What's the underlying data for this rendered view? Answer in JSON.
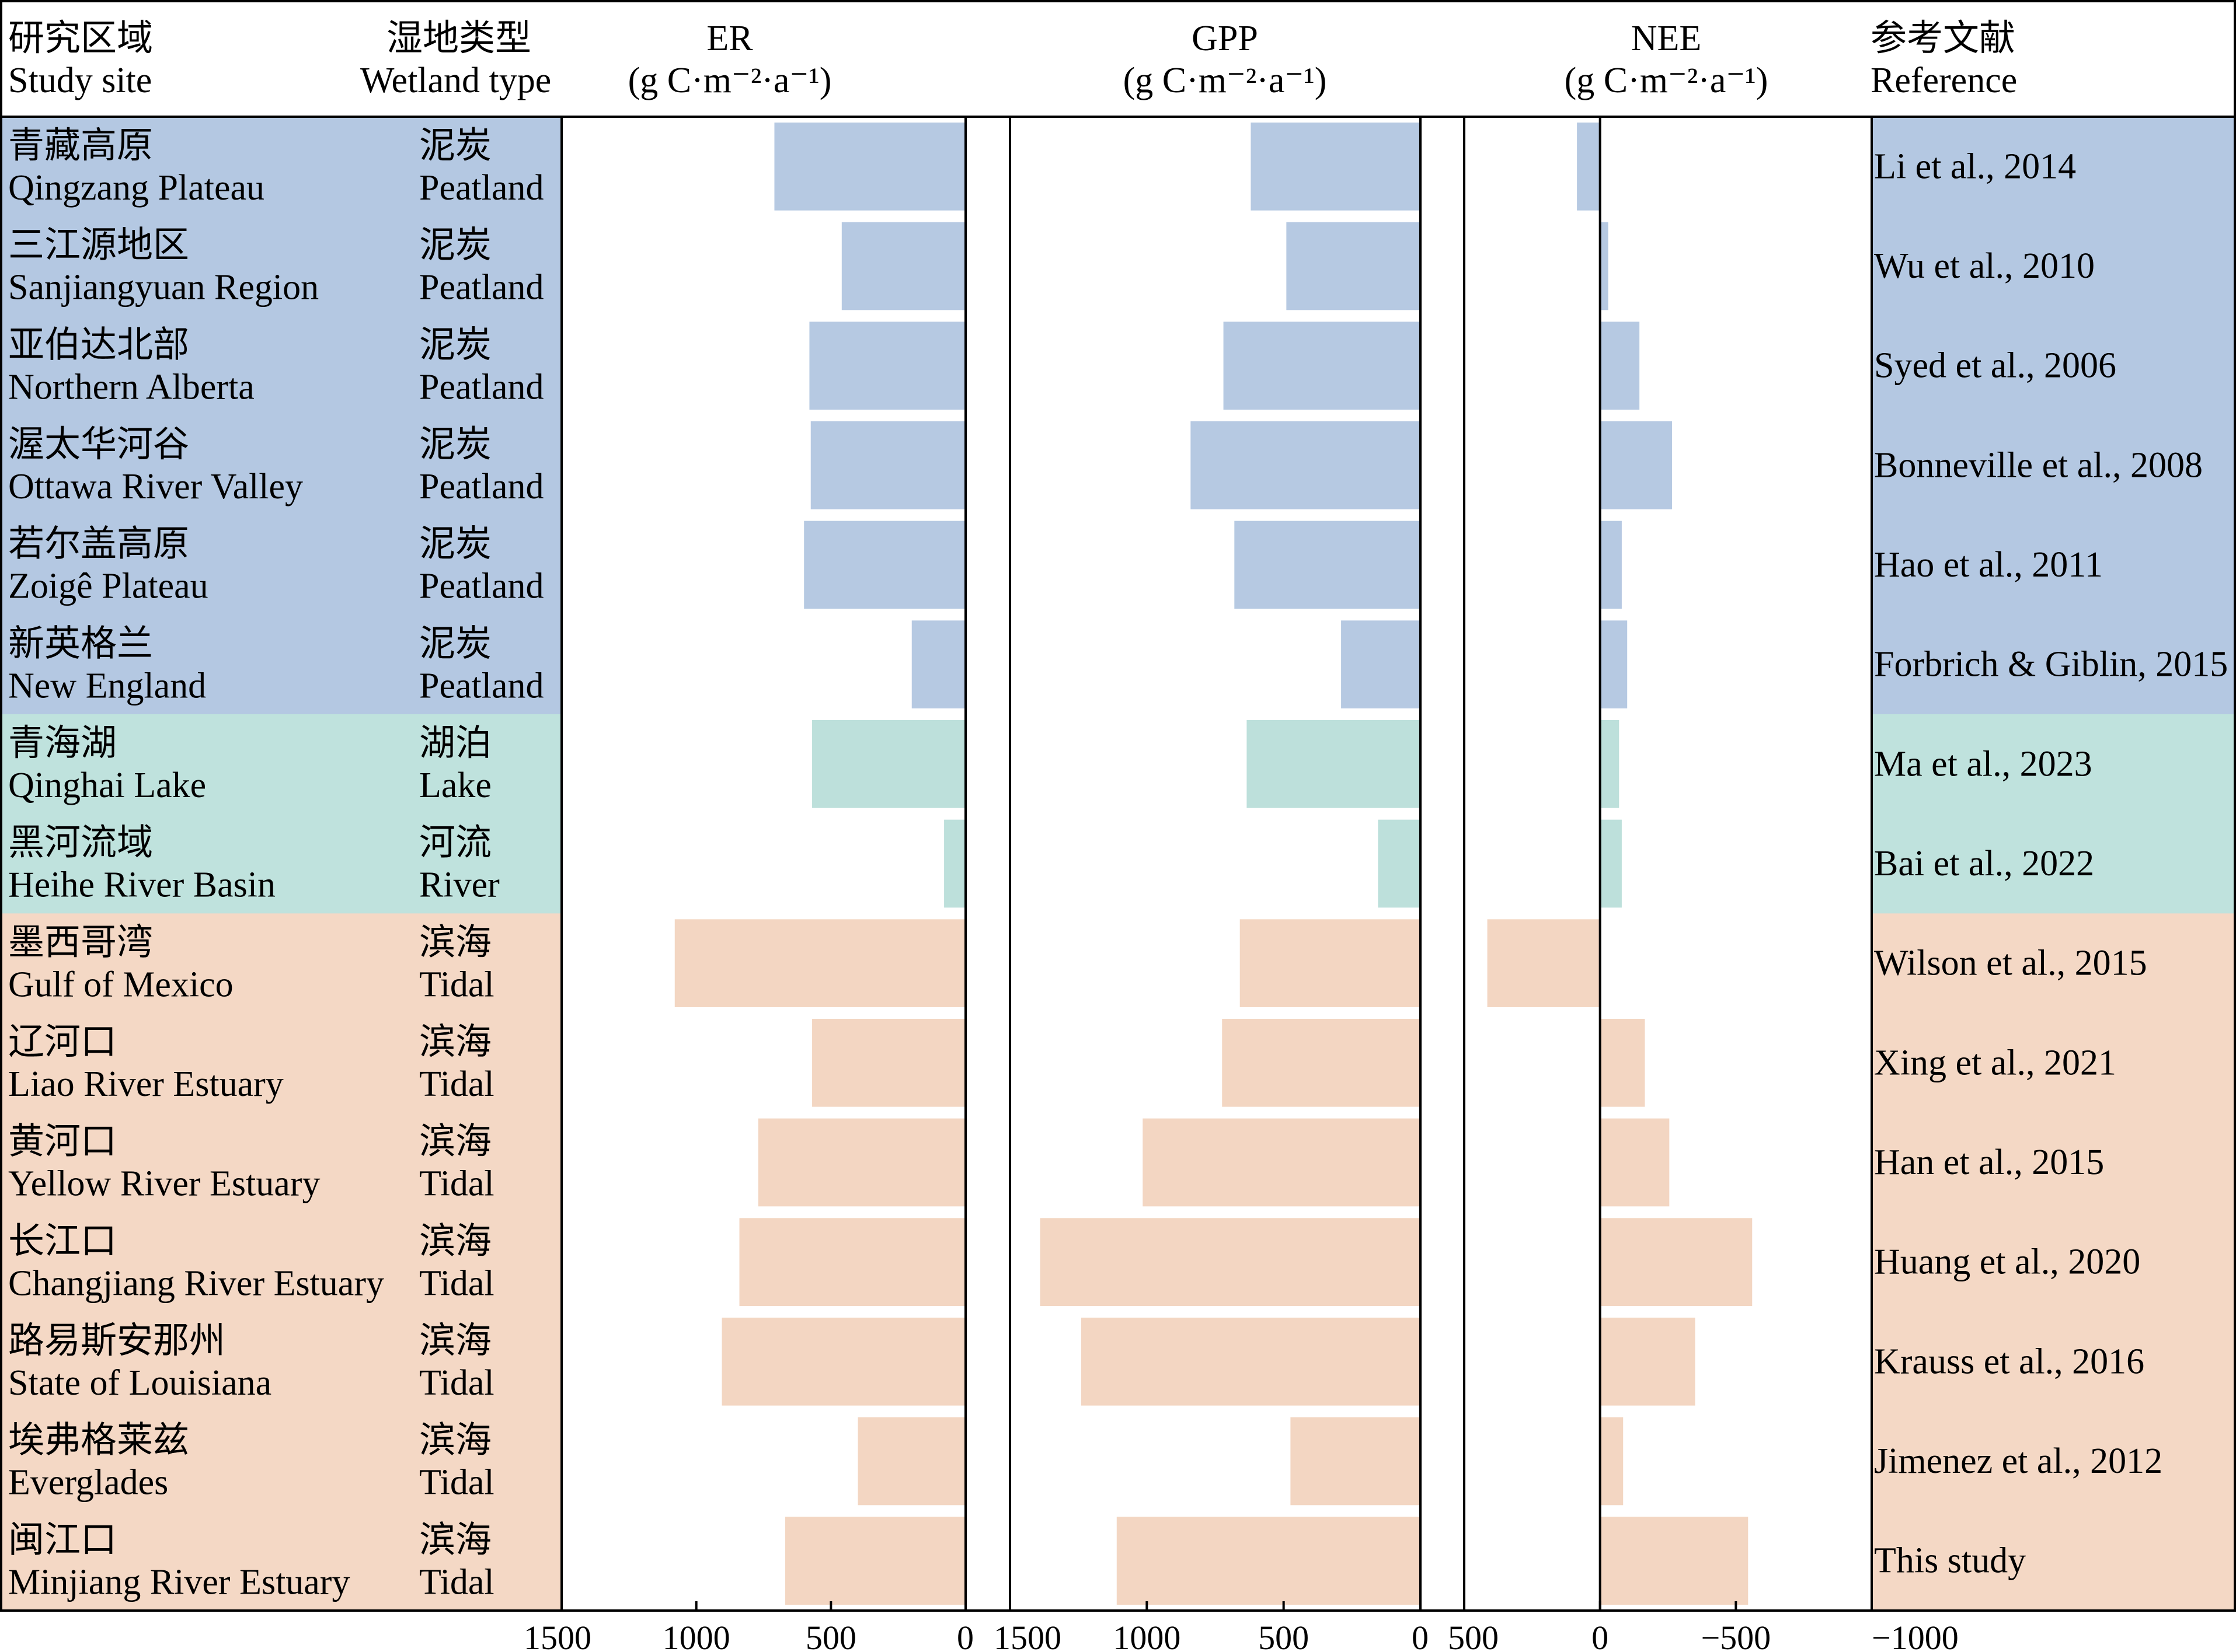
{
  "header": {
    "site_zh": "研究区域",
    "site_en": "Study site",
    "type_zh": "湿地类型",
    "type_en": "Wetland type",
    "ref_zh": "参考文献",
    "ref_en": "Reference"
  },
  "group_colors": {
    "Peatland": "#b6c9e2",
    "Lake": "#bde0db",
    "River": "#bde0db",
    "Tidal": "#f3d6c2"
  },
  "label_background_colors": {
    "Peatland": "#b4c8e2",
    "Lake": "#bfe2dd",
    "River": "#bfe2dd",
    "Tidal": "#f4d8c5"
  },
  "chart_data": [
    {
      "type": "bar",
      "orientation": "horizontal",
      "title": "ER",
      "unit": "(g C·m⁻²·a⁻¹)",
      "xlim": [
        1500,
        0
      ],
      "ticks": [
        1500,
        1000,
        500,
        0
      ],
      "tick_labels": [
        "1500",
        "1000",
        "500",
        "0"
      ],
      "values": [
        710,
        460,
        580,
        575,
        600,
        200,
        570,
        80,
        1080,
        570,
        770,
        840,
        905,
        400,
        670
      ]
    },
    {
      "type": "bar",
      "orientation": "horizontal",
      "title": "GPP",
      "unit": "(g C·m⁻²·a⁻¹)",
      "xlim": [
        1500,
        0
      ],
      "ticks": [
        1500,
        1000,
        500,
        0
      ],
      "tick_labels": [
        "1500",
        "1000",
        "500",
        "0"
      ],
      "values": [
        620,
        490,
        720,
        840,
        680,
        290,
        635,
        155,
        660,
        725,
        1015,
        1390,
        1240,
        475,
        1110
      ]
    },
    {
      "type": "bar",
      "orientation": "horizontal",
      "title": "NEE",
      "unit": "(g C·m⁻²·a⁻¹)",
      "xlim": [
        500,
        -1000
      ],
      "ticks": [
        500,
        0,
        -500,
        -1000
      ],
      "tick_labels": [
        "500",
        "0",
        "−500",
        "−1000"
      ],
      "values": [
        85,
        -30,
        -145,
        -265,
        -80,
        -100,
        -70,
        -80,
        415,
        -165,
        -255,
        -560,
        -350,
        -85,
        -545
      ]
    }
  ],
  "rows": [
    {
      "site_zh": "青藏高原",
      "site_en": "Qingzang Plateau",
      "type_zh": "泥炭",
      "type_en": "Peatland",
      "group": "Peatland",
      "ref": "Li et al., 2014"
    },
    {
      "site_zh": "三江源地区",
      "site_en": "Sanjiangyuan Region",
      "type_zh": "泥炭",
      "type_en": "Peatland",
      "group": "Peatland",
      "ref": "Wu et al., 2010"
    },
    {
      "site_zh": "亚伯达北部",
      "site_en": "Northern Alberta",
      "type_zh": "泥炭",
      "type_en": "Peatland",
      "group": "Peatland",
      "ref": "Syed et al., 2006"
    },
    {
      "site_zh": "渥太华河谷",
      "site_en": "Ottawa River Valley",
      "type_zh": "泥炭",
      "type_en": "Peatland",
      "group": "Peatland",
      "ref": "Bonneville et al., 2008"
    },
    {
      "site_zh": "若尔盖高原",
      "site_en": "Zoigê Plateau",
      "type_zh": "泥炭",
      "type_en": "Peatland",
      "group": "Peatland",
      "ref": "Hao et al., 2011"
    },
    {
      "site_zh": "新英格兰",
      "site_en": "New England",
      "type_zh": "泥炭",
      "type_en": "Peatland",
      "group": "Peatland",
      "ref": "Forbrich & Giblin, 2015"
    },
    {
      "site_zh": "青海湖",
      "site_en": "Qinghai Lake",
      "type_zh": "湖泊",
      "type_en": "Lake",
      "group": "Lake",
      "ref": "Ma et al., 2023"
    },
    {
      "site_zh": "黑河流域",
      "site_en": "Heihe River Basin",
      "type_zh": "河流",
      "type_en": "River",
      "group": "River",
      "ref": "Bai et al., 2022"
    },
    {
      "site_zh": "墨西哥湾",
      "site_en": "Gulf of Mexico",
      "type_zh": "滨海",
      "type_en": "Tidal",
      "group": "Tidal",
      "ref": "Wilson et al., 2015"
    },
    {
      "site_zh": "辽河口",
      "site_en": "Liao River Estuary",
      "type_zh": "滨海",
      "type_en": "Tidal",
      "group": "Tidal",
      "ref": "Xing et al., 2021"
    },
    {
      "site_zh": "黄河口",
      "site_en": "Yellow River Estuary",
      "type_zh": "滨海",
      "type_en": "Tidal",
      "group": "Tidal",
      "ref": "Han et al., 2015"
    },
    {
      "site_zh": "长江口",
      "site_en": "Changjiang River Estuary",
      "type_zh": "滨海",
      "type_en": "Tidal",
      "group": "Tidal",
      "ref": "Huang et al., 2020"
    },
    {
      "site_zh": "路易斯安那州",
      "site_en": "State of Louisiana",
      "type_zh": "滨海",
      "type_en": "Tidal",
      "group": "Tidal",
      "ref": "Krauss et al., 2016"
    },
    {
      "site_zh": "埃弗格莱兹",
      "site_en": "Everglades",
      "type_zh": "滨海",
      "type_en": "Tidal",
      "group": "Tidal",
      "ref": "Jimenez et al., 2012"
    },
    {
      "site_zh": "闽江口",
      "site_en": "Minjiang River Estuary",
      "type_zh": "滨海",
      "type_en": "Tidal",
      "group": "Tidal",
      "ref": "This study"
    }
  ]
}
